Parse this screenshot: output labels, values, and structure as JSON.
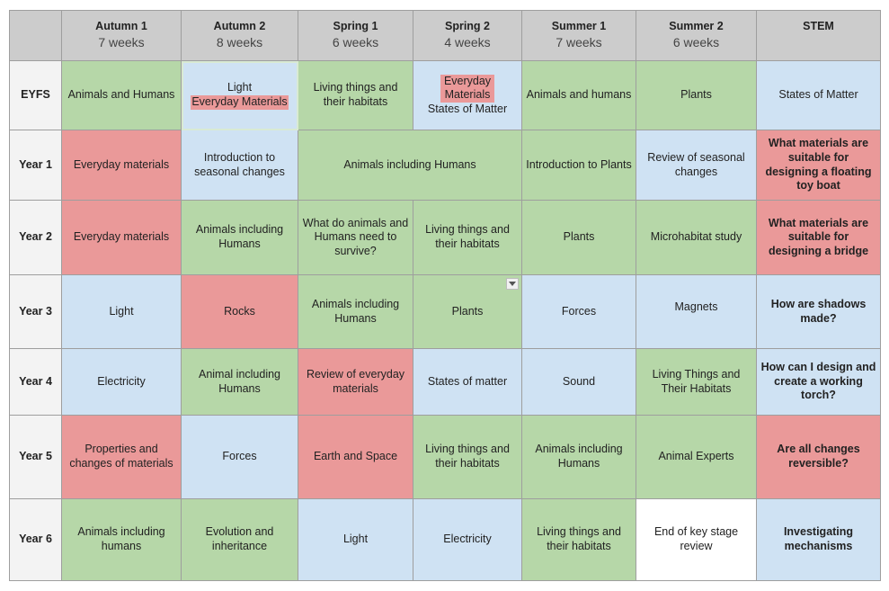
{
  "header": {
    "terms": [
      {
        "name": "Autumn 1",
        "weeks": "7 weeks"
      },
      {
        "name": "Autumn 2",
        "weeks": "8 weeks"
      },
      {
        "name": "Spring 1",
        "weeks": "6 weeks"
      },
      {
        "name": "Spring 2",
        "weeks": "4 weeks"
      },
      {
        "name": "Summer 1",
        "weeks": "7 weeks"
      },
      {
        "name": "Summer 2",
        "weeks": "6 weeks"
      },
      {
        "name": "STEM",
        "weeks": ""
      }
    ]
  },
  "rows": {
    "eyfs": {
      "label": "EYFS",
      "cells": [
        "Animals and Humans",
        "Light",
        "Everyday Materials",
        "Living things and their habitats",
        "Everyday Materials",
        "States of Matter",
        "Animals and humans",
        "Plants",
        "States of Matter"
      ]
    },
    "year1": {
      "label": "Year 1",
      "cells": [
        "Everyday materials",
        "Introduction to seasonal changes",
        "Animals including Humans",
        "Introduction to Plants",
        "Review of seasonal changes",
        "What materials are suitable for designing a floating toy boat"
      ]
    },
    "year2": {
      "label": "Year 2",
      "cells": [
        "Everyday materials",
        "Animals including Humans",
        "What do animals and Humans need to survive?",
        "Living things and their habitats",
        "Plants",
        "Microhabitat study",
        "What materials are suitable for designing a bridge"
      ]
    },
    "year3": {
      "label": "Year 3",
      "cells": [
        "Light",
        "Rocks",
        "Animals including Humans",
        "Plants",
        "Forces",
        "Magnets",
        "How are shadows made?"
      ]
    },
    "year4": {
      "label": "Year 4",
      "cells": [
        "Electricity",
        "Animal including Humans",
        "Review of everyday materials",
        "States of matter",
        "Sound",
        "Living Things and Their Habitats",
        "How can I design and create a working torch?"
      ]
    },
    "year5": {
      "label": "Year 5",
      "cells": [
        "Properties and changes of materials",
        "Forces",
        "Earth and Space",
        "Living things and their habitats",
        "Animals including Humans",
        "Animal Experts",
        "Are all changes reversible?"
      ]
    },
    "year6": {
      "label": "Year 6",
      "cells": [
        "Animals including humans",
        "Evolution and inheritance",
        "Light",
        "Electricity",
        "Living things and their habitats",
        "End of key stage review",
        "Investigating mechanisms"
      ]
    }
  },
  "colors": {
    "green": "#b6d7a8",
    "blue": "#cfe2f3",
    "red": "#ea9999",
    "header": "#cccccc",
    "row_header": "#f3f3f3"
  }
}
